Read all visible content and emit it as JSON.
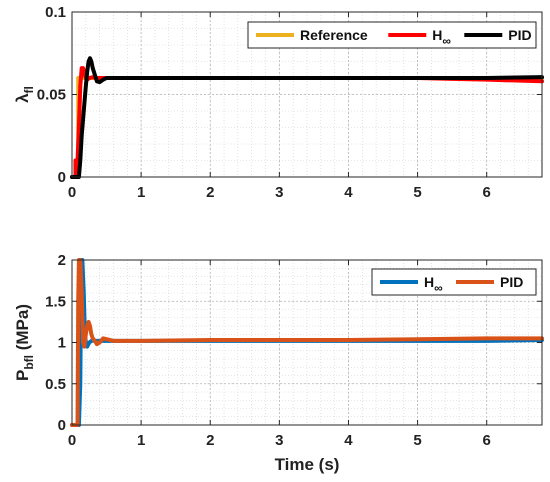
{
  "chart_data": [
    {
      "type": "line",
      "ylabel": {
        "main": "λ",
        "sub": "fl"
      },
      "xlabel": "",
      "xlim": [
        0,
        6.8
      ],
      "ylim": [
        0,
        0.1
      ],
      "xticks": [
        "0",
        "1",
        "2",
        "3",
        "4",
        "5",
        "6"
      ],
      "yticks": [
        "0",
        "0.05",
        "0.1"
      ],
      "grid": true,
      "legend_position": "top-right",
      "series": [
        {
          "name": "Reference",
          "color": "#EDB120",
          "x": [
            0,
            0.09,
            0.09,
            6.8
          ],
          "y": [
            0,
            0,
            0.06,
            0.06
          ]
        },
        {
          "name": "H∞",
          "name_parts": {
            "main": "H",
            "sub": "∞"
          },
          "color": "#FF0000",
          "x": [
            0,
            0.05,
            0.05,
            0.07,
            0.07,
            0.1,
            0.12,
            0.14,
            0.16,
            0.18,
            0.2,
            0.22,
            0.25,
            0.3,
            0.35,
            0.4,
            0.5,
            1,
            2,
            3,
            4,
            5,
            5.5,
            6,
            6.8
          ],
          "y": [
            0,
            0,
            0.01,
            0.01,
            0,
            0.03,
            0.055,
            0.066,
            0.066,
            0.063,
            0.06,
            0.059,
            0.06,
            0.0605,
            0.06,
            0.06,
            0.06,
            0.06,
            0.06,
            0.06,
            0.06,
            0.06,
            0.0595,
            0.059,
            0.058
          ]
        },
        {
          "name": "PID",
          "color": "#000000",
          "x": [
            0,
            0.1,
            0.12,
            0.14,
            0.16,
            0.18,
            0.2,
            0.22,
            0.24,
            0.26,
            0.28,
            0.3,
            0.33,
            0.36,
            0.4,
            0.45,
            0.5,
            0.6,
            1,
            2,
            3,
            4,
            5,
            6,
            6.8
          ],
          "y": [
            0,
            0,
            0.01,
            0.025,
            0.035,
            0.045,
            0.055,
            0.064,
            0.07,
            0.072,
            0.07,
            0.066,
            0.062,
            0.058,
            0.0575,
            0.059,
            0.06,
            0.06,
            0.06,
            0.06,
            0.06,
            0.06,
            0.06,
            0.06,
            0.0605
          ]
        }
      ]
    },
    {
      "type": "line",
      "ylabel": {
        "main": "P",
        "sub": "bfl",
        "suffix": " (MPa)"
      },
      "xlabel": "Time (s)",
      "xlim": [
        0,
        6.8
      ],
      "ylim": [
        0,
        2
      ],
      "xticks": [
        "0",
        "1",
        "2",
        "3",
        "4",
        "5",
        "6"
      ],
      "yticks": [
        "0",
        "0.5",
        "1",
        "1.5",
        "2"
      ],
      "grid": true,
      "legend_position": "top-right",
      "series": [
        {
          "name": "H∞",
          "name_parts": {
            "main": "H",
            "sub": "∞"
          },
          "color": "#0072BD",
          "x": [
            0,
            0.1,
            0.12,
            0.13,
            0.14,
            0.15,
            0.16,
            0.17,
            0.18,
            0.19,
            0.2,
            0.22,
            0.25,
            0.3,
            0.35,
            0.4,
            0.5,
            1,
            2,
            3,
            4,
            5,
            6,
            6.8
          ],
          "y": [
            0,
            0,
            0.5,
            1.5,
            2,
            2,
            1.8,
            1.6,
            1.3,
            1.1,
            1.0,
            0.95,
            1.0,
            1.03,
            1.02,
            1.02,
            1.02,
            1.02,
            1.02,
            1.02,
            1.02,
            1.02,
            1.02,
            1.03
          ]
        },
        {
          "name": "PID",
          "color": "#D95319",
          "x": [
            0,
            0.08,
            0.09,
            0.1,
            0.12,
            0.14,
            0.16,
            0.18,
            0.2,
            0.22,
            0.24,
            0.26,
            0.28,
            0.3,
            0.33,
            0.36,
            0.4,
            0.45,
            0.5,
            0.6,
            1,
            2,
            3,
            4,
            5,
            6,
            6.8
          ],
          "y": [
            0,
            0,
            1.5,
            2,
            2,
            1.6,
            1.0,
            0.95,
            1.1,
            1.2,
            1.25,
            1.2,
            1.1,
            1.05,
            1.02,
            0.98,
            1.0,
            1.05,
            1.04,
            1.02,
            1.02,
            1.03,
            1.03,
            1.03,
            1.04,
            1.05,
            1.05
          ]
        }
      ]
    }
  ]
}
